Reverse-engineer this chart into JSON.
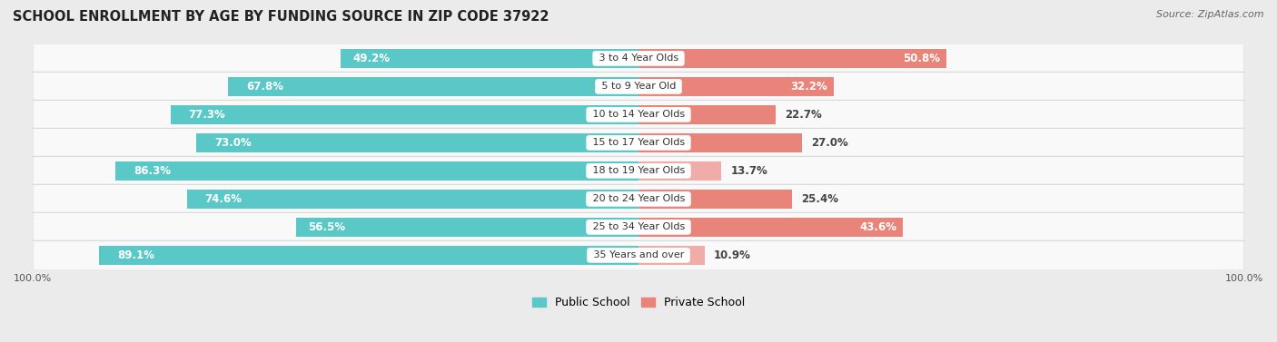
{
  "title": "SCHOOL ENROLLMENT BY AGE BY FUNDING SOURCE IN ZIP CODE 37922",
  "source": "Source: ZipAtlas.com",
  "categories": [
    "3 to 4 Year Olds",
    "5 to 9 Year Old",
    "10 to 14 Year Olds",
    "15 to 17 Year Olds",
    "18 to 19 Year Olds",
    "20 to 24 Year Olds",
    "25 to 34 Year Olds",
    "35 Years and over"
  ],
  "public_pct": [
    49.2,
    67.8,
    77.3,
    73.0,
    86.3,
    74.6,
    56.5,
    89.1
  ],
  "private_pct": [
    50.8,
    32.2,
    22.7,
    27.0,
    13.7,
    25.4,
    43.6,
    10.9
  ],
  "public_color": "#5BC8C8",
  "private_color": "#E8847A",
  "private_color_light": "#F0ADA7",
  "background_color": "#ebebeb",
  "row_bg_color": "#f9f9f9",
  "label_color_white": "#ffffff",
  "label_color_dark": "#444444",
  "title_fontsize": 10.5,
  "source_fontsize": 8,
  "bar_label_fontsize": 8.5,
  "cat_label_fontsize": 8,
  "legend_fontsize": 9,
  "axis_label_fontsize": 8
}
